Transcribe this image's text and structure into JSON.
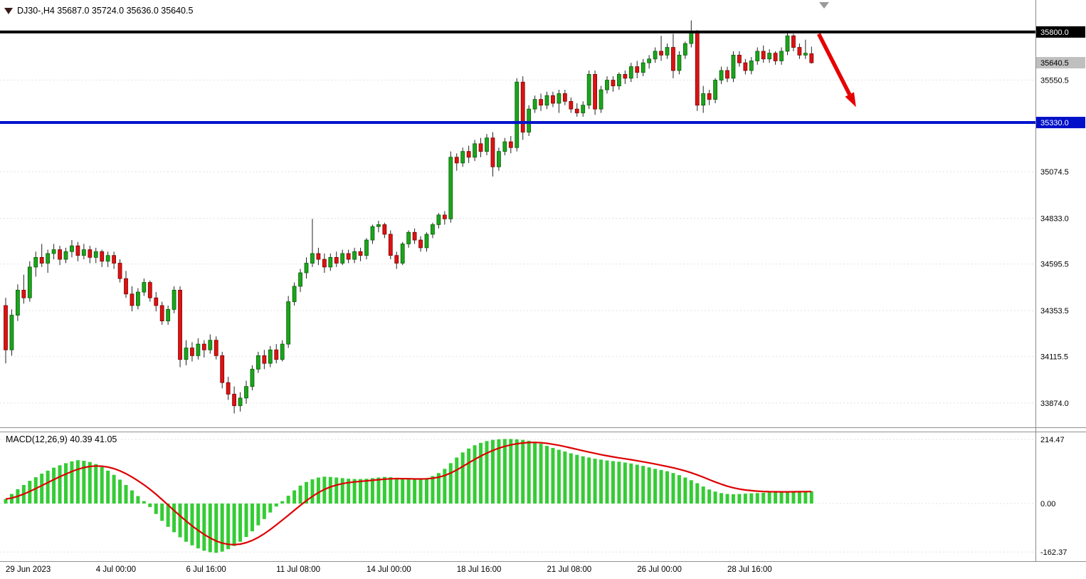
{
  "header": {
    "quote_line": "DJ30-,H4  35687.0 35724.0 35636.0 35640.5",
    "symbol": "DJ30-",
    "timeframe": "H4",
    "open": "35687.0",
    "high": "35724.0",
    "low": "35636.0",
    "close": "35640.5"
  },
  "macd_panel": {
    "label": "MACD(12,26,9) 40.39 41.05",
    "macd_value": 40.39,
    "signal_value": 41.05
  },
  "style": {
    "candle_up_fill": "#1BA51B",
    "candle_up_stroke": "#0A5E0A",
    "candle_down_fill": "#DE1212",
    "candle_down_stroke": "#7A0404",
    "wick_color": "#222222",
    "histogram_color": "#35CC35",
    "signal_line_color": "#DD0000",
    "grid_color": "#E2E2E2",
    "axis_line_color": "#8a8a8a",
    "divider_color": "#909090",
    "axis_text_color": "#000000"
  },
  "chart_data": {
    "type": "candlestick",
    "title": "DJ30-,H4",
    "price_axis": {
      "range": [
        33748,
        35966
      ],
      "ticks": [
        {
          "value": 35550.5,
          "label": "35550.5"
        },
        {
          "value": 35074.5,
          "label": "35074.5"
        },
        {
          "value": 34833.0,
          "label": "34833.0"
        },
        {
          "value": 34595.5,
          "label": "34595.5"
        },
        {
          "value": 34353.5,
          "label": "34353.5"
        },
        {
          "value": 34115.5,
          "label": "34115.5"
        },
        {
          "value": 33874.0,
          "label": "33874.0"
        }
      ]
    },
    "price_badges": [
      {
        "value": 35800.0,
        "label": "35800.0",
        "bg": "#000000",
        "fg": "#ffffff",
        "name": "resistance-price-badge"
      },
      {
        "value": 35640.5,
        "label": "35640.5",
        "bg": "#BFBFBF",
        "fg": "#000000",
        "name": "current-price-badge"
      },
      {
        "value": 35330.0,
        "label": "35330.0",
        "bg": "#0010C8",
        "fg": "#ffffff",
        "name": "support-price-badge"
      }
    ],
    "hlines": [
      {
        "value": 35800.0,
        "color": "#000000",
        "width": 4,
        "name": "resistance-line"
      },
      {
        "value": 35330.0,
        "color": "#0014CC",
        "width": 4,
        "name": "support-line"
      }
    ],
    "time_axis": {
      "ticks": [
        {
          "index": 0,
          "label": "29 Jun 2023"
        },
        {
          "index": 15,
          "label": "4 Jul 00:00"
        },
        {
          "index": 30,
          "label": "6 Jul 16:00"
        },
        {
          "index": 45,
          "label": "11 Jul 08:00"
        },
        {
          "index": 60,
          "label": "14 Jul 00:00"
        },
        {
          "index": 75,
          "label": "18 Jul 16:00"
        },
        {
          "index": 90,
          "label": "21 Jul 08:00"
        },
        {
          "index": 105,
          "label": "26 Jul 00:00"
        },
        {
          "index": 120,
          "label": "28 Jul 16:00"
        }
      ]
    },
    "candles": [
      [
        34380,
        34420,
        34080,
        34150
      ],
      [
        34150,
        34360,
        34120,
        34330
      ],
      [
        34330,
        34490,
        34300,
        34460
      ],
      [
        34460,
        34540,
        34390,
        34420
      ],
      [
        34420,
        34610,
        34400,
        34580
      ],
      [
        34580,
        34660,
        34530,
        34630
      ],
      [
        34630,
        34700,
        34580,
        34600
      ],
      [
        34600,
        34670,
        34550,
        34650
      ],
      [
        34650,
        34700,
        34620,
        34670
      ],
      [
        34670,
        34690,
        34590,
        34620
      ],
      [
        34620,
        34680,
        34600,
        34660
      ],
      [
        34660,
        34720,
        34630,
        34690
      ],
      [
        34690,
        34710,
        34610,
        34640
      ],
      [
        34640,
        34700,
        34620,
        34670
      ],
      [
        34670,
        34690,
        34600,
        34630
      ],
      [
        34630,
        34680,
        34600,
        34660
      ],
      [
        34660,
        34670,
        34580,
        34610
      ],
      [
        34610,
        34660,
        34580,
        34640
      ],
      [
        34640,
        34660,
        34570,
        34600
      ],
      [
        34600,
        34620,
        34500,
        34520
      ],
      [
        34520,
        34560,
        34420,
        34440
      ],
      [
        34440,
        34480,
        34350,
        34380
      ],
      [
        34380,
        34470,
        34360,
        34450
      ],
      [
        34450,
        34520,
        34430,
        34500
      ],
      [
        34500,
        34510,
        34400,
        34420
      ],
      [
        34420,
        34450,
        34350,
        34380
      ],
      [
        34380,
        34400,
        34280,
        34300
      ],
      [
        34300,
        34380,
        34280,
        34360
      ],
      [
        34360,
        34480,
        34340,
        34460
      ],
      [
        34460,
        34480,
        34060,
        34100
      ],
      [
        34100,
        34200,
        34070,
        34160
      ],
      [
        34160,
        34190,
        34090,
        34120
      ],
      [
        34120,
        34210,
        34100,
        34180
      ],
      [
        34180,
        34200,
        34110,
        34150
      ],
      [
        34150,
        34230,
        34130,
        34200
      ],
      [
        34200,
        34220,
        34100,
        34120
      ],
      [
        34120,
        34140,
        33950,
        33980
      ],
      [
        33980,
        34010,
        33890,
        33920
      ],
      [
        33920,
        33960,
        33820,
        33860
      ],
      [
        33860,
        33930,
        33830,
        33900
      ],
      [
        33900,
        33990,
        33870,
        33960
      ],
      [
        33960,
        34070,
        33940,
        34050
      ],
      [
        34050,
        34140,
        34030,
        34120
      ],
      [
        34120,
        34150,
        34050,
        34080
      ],
      [
        34080,
        34170,
        34060,
        34150
      ],
      [
        34150,
        34180,
        34080,
        34100
      ],
      [
        34100,
        34200,
        34090,
        34180
      ],
      [
        34180,
        34430,
        34160,
        34400
      ],
      [
        34400,
        34500,
        34380,
        34480
      ],
      [
        34480,
        34570,
        34450,
        34550
      ],
      [
        34550,
        34630,
        34520,
        34600
      ],
      [
        34600,
        34830,
        34580,
        34650
      ],
      [
        34650,
        34680,
        34590,
        34620
      ],
      [
        34620,
        34650,
        34550,
        34580
      ],
      [
        34580,
        34650,
        34560,
        34630
      ],
      [
        34630,
        34660,
        34580,
        34600
      ],
      [
        34600,
        34670,
        34590,
        34650
      ],
      [
        34650,
        34670,
        34600,
        34620
      ],
      [
        34620,
        34680,
        34600,
        34660
      ],
      [
        34660,
        34680,
        34610,
        34640
      ],
      [
        34640,
        34730,
        34620,
        34720
      ],
      [
        34720,
        34800,
        34700,
        34790
      ],
      [
        34790,
        34820,
        34760,
        34800
      ],
      [
        34800,
        34810,
        34730,
        34750
      ],
      [
        34750,
        34770,
        34620,
        34640
      ],
      [
        34640,
        34660,
        34570,
        34600
      ],
      [
        34600,
        34710,
        34590,
        34700
      ],
      [
        34700,
        34770,
        34680,
        34760
      ],
      [
        34760,
        34780,
        34700,
        34720
      ],
      [
        34720,
        34740,
        34660,
        34680
      ],
      [
        34680,
        34760,
        34660,
        34750
      ],
      [
        34750,
        34810,
        34730,
        34800
      ],
      [
        34800,
        34860,
        34780,
        34850
      ],
      [
        34850,
        34870,
        34800,
        34830
      ],
      [
        34830,
        35180,
        34810,
        35150
      ],
      [
        35150,
        35170,
        35080,
        35120
      ],
      [
        35120,
        35200,
        35100,
        35180
      ],
      [
        35180,
        35210,
        35120,
        35150
      ],
      [
        35150,
        35240,
        35130,
        35220
      ],
      [
        35220,
        35250,
        35150,
        35180
      ],
      [
        35180,
        35270,
        35160,
        35250
      ],
      [
        35250,
        35280,
        35050,
        35100
      ],
      [
        35100,
        35200,
        35080,
        35180
      ],
      [
        35180,
        35250,
        35160,
        35230
      ],
      [
        35230,
        35260,
        35170,
        35200
      ],
      [
        35200,
        35560,
        35180,
        35540
      ],
      [
        35540,
        35570,
        35240,
        35280
      ],
      [
        35280,
        35420,
        35260,
        35400
      ],
      [
        35400,
        35470,
        35380,
        35450
      ],
      [
        35450,
        35480,
        35390,
        35420
      ],
      [
        35420,
        35490,
        35400,
        35470
      ],
      [
        35470,
        35490,
        35410,
        35430
      ],
      [
        35430,
        35500,
        35380,
        35480
      ],
      [
        35480,
        35500,
        35420,
        35440
      ],
      [
        35440,
        35460,
        35380,
        35400
      ],
      [
        35400,
        35430,
        35360,
        35380
      ],
      [
        35380,
        35440,
        35360,
        35420
      ],
      [
        35420,
        35600,
        35400,
        35580
      ],
      [
        35580,
        35600,
        35370,
        35400
      ],
      [
        35400,
        35520,
        35380,
        35500
      ],
      [
        35500,
        35570,
        35480,
        35550
      ],
      [
        35550,
        35570,
        35490,
        35520
      ],
      [
        35520,
        35590,
        35500,
        35580
      ],
      [
        35580,
        35600,
        35530,
        35560
      ],
      [
        35560,
        35640,
        35540,
        35620
      ],
      [
        35620,
        35650,
        35560,
        35590
      ],
      [
        35590,
        35660,
        35570,
        35640
      ],
      [
        35640,
        35680,
        35610,
        35660
      ],
      [
        35660,
        35720,
        35640,
        35700
      ],
      [
        35700,
        35780,
        35650,
        35680
      ],
      [
        35680,
        35740,
        35660,
        35720
      ],
      [
        35720,
        35790,
        35560,
        35600
      ],
      [
        35600,
        35700,
        35580,
        35680
      ],
      [
        35680,
        35750,
        35660,
        35740
      ],
      [
        35740,
        35860,
        35720,
        35800
      ],
      [
        35800,
        35810,
        35390,
        35420
      ],
      [
        35420,
        35520,
        35380,
        35480
      ],
      [
        35480,
        35500,
        35420,
        35450
      ],
      [
        35450,
        35560,
        35430,
        35550
      ],
      [
        35550,
        35620,
        35530,
        35600
      ],
      [
        35600,
        35620,
        35540,
        35560
      ],
      [
        35560,
        35700,
        35540,
        35680
      ],
      [
        35680,
        35700,
        35620,
        35640
      ],
      [
        35640,
        35660,
        35580,
        35600
      ],
      [
        35600,
        35670,
        35580,
        35650
      ],
      [
        35650,
        35720,
        35630,
        35700
      ],
      [
        35700,
        35730,
        35640,
        35660
      ],
      [
        35660,
        35710,
        35640,
        35690
      ],
      [
        35690,
        35700,
        35630,
        35650
      ],
      [
        35650,
        35720,
        35630,
        35700
      ],
      [
        35700,
        35800,
        35680,
        35780
      ],
      [
        35780,
        35790,
        35700,
        35720
      ],
      [
        35720,
        35740,
        35660,
        35680
      ],
      [
        35680,
        35760,
        35660,
        35690
      ],
      [
        35687,
        35724,
        35636,
        35640.5
      ]
    ],
    "macd": {
      "params": [
        12,
        26,
        9
      ],
      "macd_last": 40.39,
      "signal_last": 41.05,
      "range": [
        -193,
        236
      ],
      "axis_ticks": [
        {
          "value": 214.47,
          "label": "214.47"
        },
        {
          "value": 0,
          "label": "0.00"
        },
        {
          "value": -162.37,
          "label": "-162.37"
        }
      ],
      "histogram": [
        15,
        32,
        48,
        62,
        76,
        88,
        100,
        110,
        120,
        128,
        135,
        141,
        145,
        143,
        139,
        132,
        122,
        110,
        96,
        80,
        62,
        44,
        25,
        8,
        -12,
        -35,
        -58,
        -78,
        -96,
        -113,
        -128,
        -140,
        -150,
        -158,
        -163,
        -165,
        -161,
        -153,
        -142,
        -128,
        -112,
        -93,
        -73,
        -52,
        -30,
        -10,
        8,
        26,
        44,
        60,
        72,
        81,
        87,
        90,
        89,
        87,
        85,
        83,
        82,
        82,
        83,
        85,
        87,
        89,
        88,
        86,
        83,
        81,
        80,
        82,
        85,
        92,
        102,
        116,
        135,
        154,
        171,
        184,
        195,
        203,
        209,
        213,
        215,
        216,
        216,
        215,
        213,
        210,
        206,
        200,
        193,
        186,
        180,
        174,
        168,
        163,
        158,
        154,
        150,
        147,
        144,
        142,
        140,
        137,
        134,
        130,
        126,
        121,
        116,
        112,
        108,
        102,
        95,
        87,
        78,
        68,
        57,
        47,
        40,
        35,
        32,
        31,
        32,
        33,
        34,
        35,
        36,
        37,
        38,
        38,
        39,
        40,
        41,
        41,
        40.39
      ]
    },
    "arrow_annotation": {
      "from_index": 135.2,
      "from_price": 35790,
      "to_index": 141.4,
      "to_price": 35410,
      "color": "#E60000"
    }
  }
}
